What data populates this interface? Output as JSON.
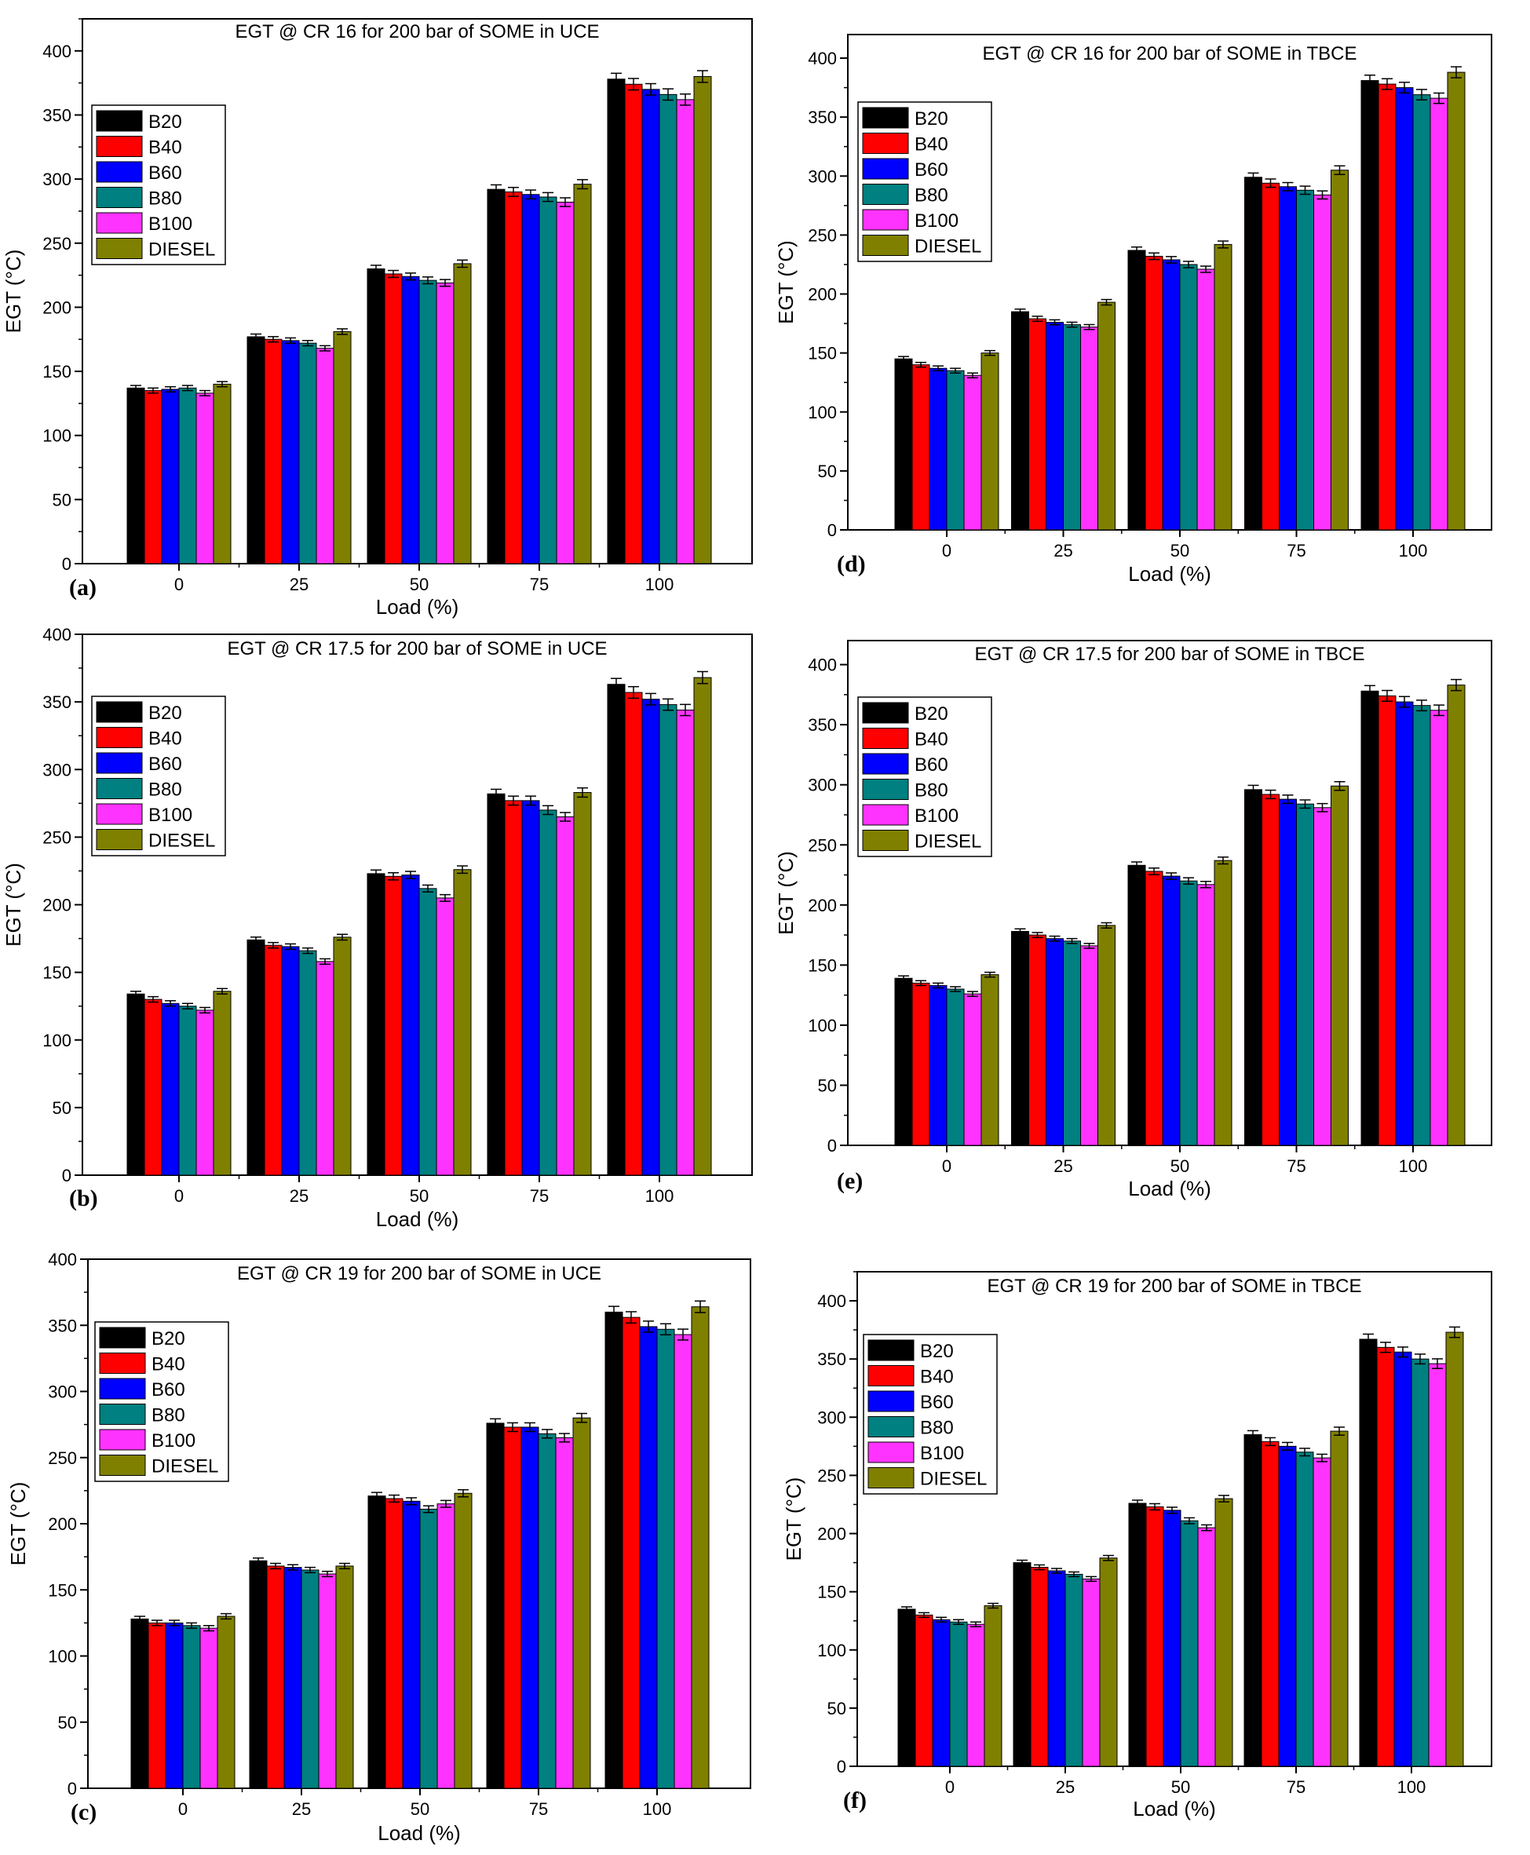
{
  "colors": {
    "B20": "#000000",
    "B40": "#ff0000",
    "B60": "#0000ff",
    "B80": "#008080",
    "B100": "#ff33ff",
    "DIESEL": "#808000"
  },
  "chart_data": [
    {
      "id": "a",
      "type": "bar",
      "panel_label": "(a)",
      "title": "EGT @ CR 16  for 200 bar of SOME in UCE",
      "xlabel": "Load (%)",
      "ylabel": "EGT (°C)",
      "ylim": [
        0,
        425
      ],
      "yticks": [
        0,
        50,
        100,
        150,
        200,
        250,
        300,
        350,
        400
      ],
      "categories": [
        "0",
        "25",
        "50",
        "75",
        "100"
      ],
      "legend_position": "upper-left",
      "series": [
        {
          "name": "B20",
          "values": [
            137,
            177,
            230,
            292,
            378
          ]
        },
        {
          "name": "B40",
          "values": [
            135,
            175,
            226,
            290,
            374
          ]
        },
        {
          "name": "B60",
          "values": [
            136,
            174,
            224,
            288,
            370
          ]
        },
        {
          "name": "B80",
          "values": [
            137,
            172,
            221,
            286,
            366
          ]
        },
        {
          "name": "B100",
          "values": [
            133,
            168,
            219,
            282,
            362
          ]
        },
        {
          "name": "DIESEL",
          "values": [
            140,
            181,
            234,
            296,
            380
          ]
        }
      ]
    },
    {
      "id": "b",
      "type": "bar",
      "panel_label": "(b)",
      "title": "EGT @ CR 17.5  for 200 bar of SOME in UCE",
      "xlabel": "Load (%)",
      "ylabel": "EGT (°C)",
      "ylim": [
        0,
        400
      ],
      "yticks": [
        0,
        50,
        100,
        150,
        200,
        250,
        300,
        350,
        400
      ],
      "categories": [
        "0",
        "25",
        "50",
        "75",
        "100"
      ],
      "legend_position": "upper-left",
      "series": [
        {
          "name": "B20",
          "values": [
            134,
            174,
            223,
            282,
            363
          ]
        },
        {
          "name": "B40",
          "values": [
            130,
            170,
            221,
            277,
            357
          ]
        },
        {
          "name": "B60",
          "values": [
            127,
            169,
            222,
            277,
            352
          ]
        },
        {
          "name": "B80",
          "values": [
            125,
            166,
            212,
            270,
            348
          ]
        },
        {
          "name": "B100",
          "values": [
            122,
            158,
            205,
            265,
            344
          ]
        },
        {
          "name": "DIESEL",
          "values": [
            136,
            176,
            226,
            283,
            368
          ]
        }
      ]
    },
    {
      "id": "c",
      "type": "bar",
      "panel_label": "(c)",
      "title": "EGT @ CR 19  for 200 bar of SOME in UCE",
      "xlabel": "Load (%)",
      "ylabel": "EGT (°C)",
      "ylim": [
        0,
        400
      ],
      "yticks": [
        0,
        50,
        100,
        150,
        200,
        250,
        300,
        350,
        400
      ],
      "categories": [
        "0",
        "25",
        "50",
        "75",
        "100"
      ],
      "legend_position": "upper-left",
      "series": [
        {
          "name": "B20",
          "values": [
            128,
            172,
            221,
            276,
            360
          ]
        },
        {
          "name": "B40",
          "values": [
            125,
            168,
            219,
            273,
            356
          ]
        },
        {
          "name": "B60",
          "values": [
            125,
            167,
            217,
            273,
            349
          ]
        },
        {
          "name": "B80",
          "values": [
            123,
            165,
            211,
            268,
            347
          ]
        },
        {
          "name": "B100",
          "values": [
            121,
            162,
            215,
            265,
            343
          ]
        },
        {
          "name": "DIESEL",
          "values": [
            130,
            168,
            223,
            280,
            364
          ]
        }
      ]
    },
    {
      "id": "d",
      "type": "bar",
      "panel_label": "(d)",
      "title": "EGT @ CR 16  for 200 bar of SOME in TBCE",
      "xlabel": "Load (%)",
      "ylabel": "EGT (°C)",
      "ylim": [
        0,
        420
      ],
      "yticks": [
        0,
        50,
        100,
        150,
        200,
        250,
        300,
        350,
        400
      ],
      "categories": [
        "0",
        "25",
        "50",
        "75",
        "100"
      ],
      "legend_position": "upper-left",
      "series": [
        {
          "name": "B20",
          "values": [
            145,
            185,
            237,
            299,
            381
          ]
        },
        {
          "name": "B40",
          "values": [
            140,
            179,
            232,
            294,
            378
          ]
        },
        {
          "name": "B60",
          "values": [
            137,
            176,
            229,
            291,
            375
          ]
        },
        {
          "name": "B80",
          "values": [
            135,
            174,
            225,
            288,
            369
          ]
        },
        {
          "name": "B100",
          "values": [
            131,
            172,
            221,
            284,
            366
          ]
        },
        {
          "name": "DIESEL",
          "values": [
            150,
            193,
            242,
            305,
            388
          ]
        }
      ]
    },
    {
      "id": "e",
      "type": "bar",
      "panel_label": "(e)",
      "title": "EGT @ CR 17.5  for 200 bar of SOME in TBCE",
      "xlabel": "Load (%)",
      "ylabel": "EGT (°C)",
      "ylim": [
        0,
        420
      ],
      "yticks": [
        0,
        50,
        100,
        150,
        200,
        250,
        300,
        350,
        400
      ],
      "categories": [
        "0",
        "25",
        "50",
        "75",
        "100"
      ],
      "legend_position": "upper-left",
      "series": [
        {
          "name": "B20",
          "values": [
            139,
            178,
            233,
            296,
            378
          ]
        },
        {
          "name": "B40",
          "values": [
            135,
            175,
            228,
            292,
            374
          ]
        },
        {
          "name": "B60",
          "values": [
            133,
            172,
            224,
            288,
            369
          ]
        },
        {
          "name": "B80",
          "values": [
            130,
            170,
            220,
            284,
            366
          ]
        },
        {
          "name": "B100",
          "values": [
            126,
            166,
            217,
            281,
            362
          ]
        },
        {
          "name": "DIESEL",
          "values": [
            142,
            183,
            237,
            299,
            383
          ]
        }
      ]
    },
    {
      "id": "f",
      "type": "bar",
      "panel_label": "(f)",
      "title": "EGT @ CR 19  for 200 bar of SOME in TBCE",
      "xlabel": "Load (%)",
      "ylabel": "EGT (°C)",
      "ylim": [
        0,
        425
      ],
      "yticks": [
        0,
        50,
        100,
        150,
        200,
        250,
        300,
        350,
        400
      ],
      "categories": [
        "0",
        "25",
        "50",
        "75",
        "100"
      ],
      "legend_position": "upper-left",
      "series": [
        {
          "name": "B20",
          "values": [
            135,
            175,
            226,
            285,
            367
          ]
        },
        {
          "name": "B40",
          "values": [
            130,
            171,
            223,
            279,
            360
          ]
        },
        {
          "name": "B60",
          "values": [
            126,
            168,
            220,
            275,
            356
          ]
        },
        {
          "name": "B80",
          "values": [
            124,
            165,
            211,
            270,
            350
          ]
        },
        {
          "name": "B100",
          "values": [
            122,
            161,
            205,
            265,
            346
          ]
        },
        {
          "name": "DIESEL",
          "values": [
            138,
            179,
            230,
            288,
            373
          ]
        }
      ]
    }
  ]
}
